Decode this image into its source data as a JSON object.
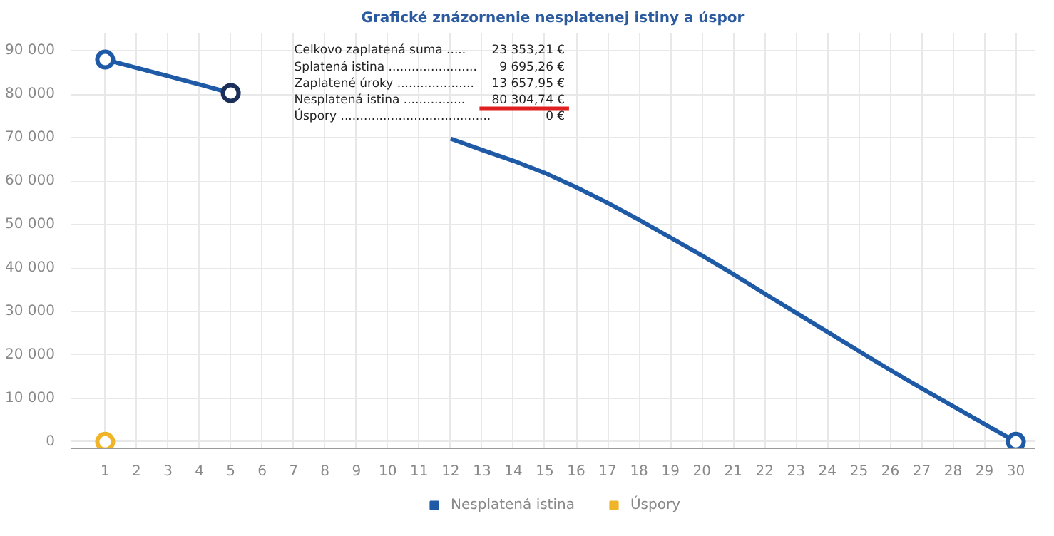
{
  "chart_data": {
    "type": "line",
    "title": "Grafické znázornenie nesplatenej istiny a úspor",
    "x": [
      1,
      2,
      3,
      4,
      5,
      6,
      7,
      8,
      9,
      10,
      11,
      12,
      13,
      14,
      15,
      16,
      17,
      18,
      19,
      20,
      21,
      22,
      23,
      24,
      25,
      26,
      27,
      28,
      29,
      30
    ],
    "series": [
      {
        "name": "Nesplatená istina",
        "color": "#1f5aa6",
        "marker": "none",
        "values": [
          88000,
          86100,
          84200,
          82300,
          80300,
          null,
          null,
          null,
          null,
          null,
          null,
          69800,
          67200,
          64700,
          61900,
          58600,
          55000,
          51100,
          47000,
          42900,
          38600,
          34100,
          29700,
          25300,
          20900,
          16500,
          12300,
          8200,
          4100,
          0
        ]
      },
      {
        "type": "scatter",
        "color": "#1f5aa6",
        "x": [
          1,
          30
        ],
        "values": [
          88000,
          0
        ],
        "marker": "circle"
      },
      {
        "type": "scatter",
        "color": "#1b2f5a",
        "x": [
          5
        ],
        "values": [
          80300
        ],
        "marker": "circle"
      },
      {
        "name": "Úspory",
        "type": "scatter",
        "color": "#f0b429",
        "x": [
          1
        ],
        "values": [
          0
        ],
        "marker": "circle"
      }
    ],
    "xlim": [
      -0.1,
      30.6
    ],
    "xticks": [
      1,
      2,
      3,
      4,
      5,
      6,
      7,
      8,
      9,
      10,
      11,
      12,
      13,
      14,
      15,
      16,
      17,
      18,
      19,
      20,
      21,
      22,
      23,
      24,
      25,
      26,
      27,
      28,
      29,
      30
    ],
    "ylim": [
      -1500,
      94000
    ],
    "yticks": [
      {
        "value": 0,
        "label": "0"
      },
      {
        "value": 10000,
        "label": "10 000"
      },
      {
        "value": 20000,
        "label": "20 000"
      },
      {
        "value": 30000,
        "label": "30 000"
      },
      {
        "value": 40000,
        "label": "40 000"
      },
      {
        "value": 50000,
        "label": "50 000"
      },
      {
        "value": 60000,
        "label": "60 000"
      },
      {
        "value": 70000,
        "label": "70 000"
      },
      {
        "value": 80000,
        "label": "80 000"
      },
      {
        "value": 90000,
        "label": "90 000"
      }
    ],
    "grid": true,
    "legend": "bottom",
    "annotations": [
      "Celkovo zaplatená suma .....",
      "23 353,21 €",
      "Splatená istina .......................",
      "9 695,26 €",
      "Zaplatené úroky ....................",
      "13 657,95 €",
      "Nesplatená istina ................",
      "80 304,74 €",
      "Úspory .......................................",
      "0 €"
    ]
  }
}
